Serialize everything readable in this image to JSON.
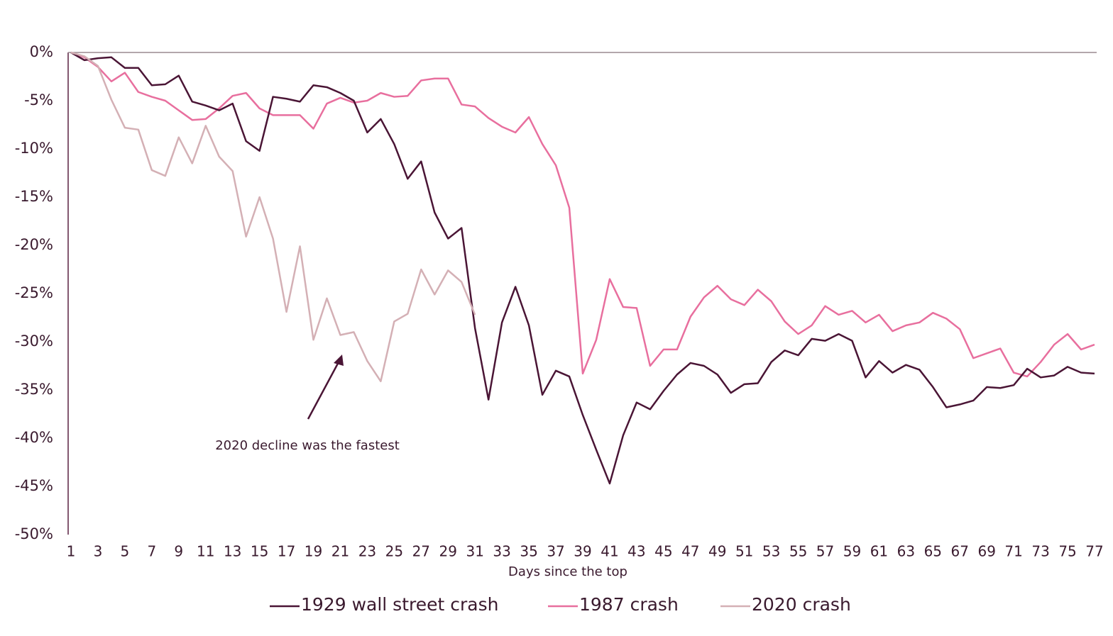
{
  "chart_data": {
    "type": "line",
    "x_label": "Days since the top",
    "annotation": "2020 decline was the fastest",
    "categories": [
      1,
      null,
      3,
      null,
      5,
      null,
      7,
      null,
      9,
      null,
      11,
      null,
      13,
      null,
      15,
      null,
      17,
      null,
      19,
      null,
      21,
      null,
      23,
      null,
      25,
      null,
      27,
      null,
      29,
      null,
      31,
      null,
      33,
      null,
      35,
      null,
      37,
      null,
      39,
      null,
      41,
      null,
      43,
      null,
      45,
      null,
      47,
      null,
      49,
      null,
      51,
      null,
      53,
      null,
      55,
      null,
      57,
      null,
      59,
      null,
      61,
      null,
      63,
      null,
      65,
      null,
      67,
      null,
      69,
      null,
      71,
      null,
      73,
      null,
      75,
      null,
      77
    ],
    "series": [
      {
        "name": "1929 wall street crash",
        "color": "#4a1535",
        "values": [
          0,
          -0.8,
          -0.6,
          -0.5,
          -1.6,
          -1.6,
          -3.4,
          -3.3,
          -2.4,
          -5.1,
          -5.5,
          -6,
          -5.3,
          -9.2,
          -10.2,
          -4.6,
          -4.8,
          -5.1,
          -3.4,
          -3.6,
          -4.2,
          -5,
          -8.3,
          -6.9,
          -9.5,
          -13.1,
          -11.3,
          -16.6,
          -19.3,
          -18.2,
          -28.6,
          -36,
          -28,
          -24.3,
          -28.3,
          -35.5,
          -33,
          -33.6,
          -37.6,
          -41.2,
          -44.7,
          -39.7,
          -36.3,
          -37,
          -35.1,
          -33.4,
          -32.2,
          -32.5,
          -33.4,
          -35.3,
          -34.4,
          -34.3,
          -32.1,
          -30.9,
          -31.4,
          -29.7,
          -29.9,
          -29.2,
          -29.9,
          -33.7,
          -32,
          -33.2,
          -32.4,
          -32.9,
          -34.7,
          -36.8,
          -36.5,
          -36.1,
          -34.7,
          -34.8,
          -34.5,
          -32.8,
          -33.7,
          -33.5,
          -32.6,
          -33.2,
          -33.3
        ]
      },
      {
        "name": "1987 crash",
        "color": "#e86f9e",
        "values": [
          0,
          -0.5,
          -1.5,
          -3,
          -2.1,
          -4.1,
          -4.6,
          -5,
          -6,
          -7,
          -6.9,
          -5.8,
          -4.5,
          -4.2,
          -5.8,
          -6.5,
          -6.5,
          -6.5,
          -7.9,
          -5.3,
          -4.7,
          -5.2,
          -5,
          -4.2,
          -4.6,
          -4.5,
          -2.9,
          -2.7,
          -2.7,
          -5.4,
          -5.6,
          -6.8,
          -7.7,
          -8.3,
          -6.7,
          -9.5,
          -11.7,
          -16.1,
          -33.3,
          -29.8,
          -23.5,
          -26.4,
          -26.5,
          -32.5,
          -30.8,
          -30.8,
          -27.4,
          -25.4,
          -24.2,
          -25.6,
          -26.2,
          -24.6,
          -25.8,
          -27.9,
          -29.2,
          -28.3,
          -26.3,
          -27.2,
          -26.8,
          -28,
          -27.2,
          -28.9,
          -28.3,
          -28,
          -27,
          -27.6,
          -28.7,
          -31.7,
          -31.2,
          -30.7,
          -33.2,
          -33.6,
          -32.1,
          -30.3,
          -29.2,
          -30.8,
          -30.3
        ]
      },
      {
        "name": "2020 crash",
        "color": "#d4b0b5",
        "values": [
          0,
          -0.4,
          -1.4,
          -4.9,
          -7.8,
          -8,
          -12.2,
          -12.8,
          -8.8,
          -11.5,
          -7.6,
          -10.8,
          -12.3,
          -19.1,
          -15,
          -19.3,
          -26.9,
          -20.1,
          -29.8,
          -25.5,
          -29.3,
          -29,
          -32,
          -34.1,
          -27.9,
          -27.1,
          -22.5,
          -25.1,
          -22.6,
          -23.8,
          -27.2,
          null,
          null,
          null,
          null,
          null,
          null,
          null,
          null,
          null,
          null,
          null,
          null,
          null,
          null,
          null,
          null,
          null,
          null,
          null,
          null,
          null,
          null,
          null,
          null,
          null,
          null,
          null,
          null,
          null,
          null,
          null,
          null,
          null,
          null,
          null,
          null,
          null,
          null,
          null,
          null,
          null,
          null,
          null,
          null,
          null,
          null
        ]
      }
    ],
    "ylim": [
      -50,
      0
    ],
    "yticks": [
      {
        "value": 0,
        "label": "0%"
      },
      {
        "value": -5,
        "label": "-5%"
      },
      {
        "value": -10,
        "label": "-10%"
      },
      {
        "value": -15,
        "label": "-15%"
      },
      {
        "value": -20,
        "label": "-20%"
      },
      {
        "value": -25,
        "label": "-25%"
      },
      {
        "value": -30,
        "label": "-30%"
      },
      {
        "value": -35,
        "label": "-35%"
      },
      {
        "value": -40,
        "label": "-40%"
      },
      {
        "value": -45,
        "label": "-45%"
      },
      {
        "value": -50,
        "label": "-50%"
      }
    ],
    "grid": false
  }
}
